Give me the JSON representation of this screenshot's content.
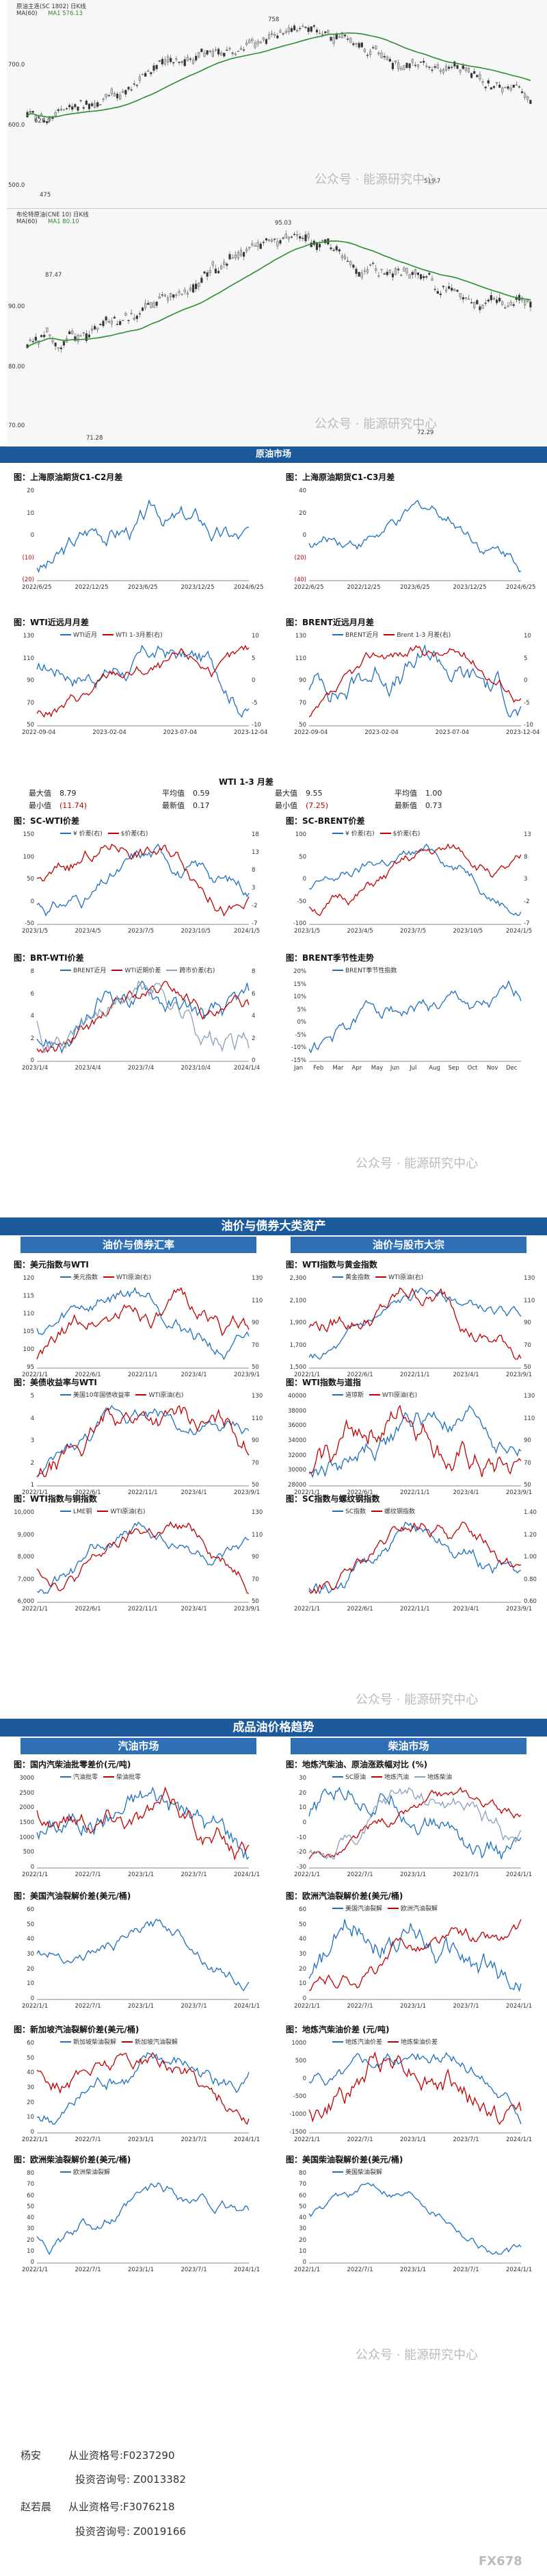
{
  "watermark": "公众号 · 能源研究中心",
  "corner_mark": "FX678",
  "top_charts": {
    "k1": {
      "head": "原油主连(SC 1802)    日K线",
      "ma": "MA(60)",
      "ma_val": "MA1 576.13",
      "price_high": "758",
      "price_mark1": "628.9",
      "price_mark2": "519.7",
      "price_low": "475",
      "y_ticks": [
        "700.0",
        "600.0",
        "500.0"
      ],
      "x_ticks": [
        "2022/7/5",
        "2022/11/3",
        "2023/3/10",
        "2023/7/11",
        "2023/11/9",
        "2024/3/8",
        "2024/6/28"
      ]
    },
    "k2": {
      "head": "布伦特原油(CNE 10)    日K线",
      "ma": "MA(60)",
      "ma_val": "MA1 80.10",
      "price_high": "95.03",
      "price_mark1": "87.47",
      "price_low": "72.29",
      "price_mark2": "71.28",
      "y_ticks": [
        "90.00",
        "80.00",
        "70.00"
      ],
      "x_ticks": [
        "2022/9/29",
        "2023/1/20",
        "2023/5/5",
        "2023/8/24",
        "2023/12/11",
        "2024/4/3"
      ]
    }
  },
  "bands": {
    "crude": "原油市场",
    "cross": "油价与债券大类资产",
    "refined": "成品油价格趋势"
  },
  "subbands": {
    "bond": "油价与债券汇率",
    "equity": "油价与股市大宗",
    "gasoline": "汽油市场",
    "diesel": "柴油市场"
  },
  "stats": {
    "title": "WTI 1-3 月差",
    "rows": [
      [
        "最大值",
        "8.79",
        "平均值",
        "0.59",
        "最大值",
        "9.55",
        "平均值",
        "1.00"
      ],
      [
        "最小值",
        "(11.74)",
        "最新值",
        "0.17",
        "最小值",
        "(7.25)",
        "最新值",
        "0.73"
      ]
    ]
  },
  "charts": [
    {
      "id": "c1",
      "title": "图：上海原油期货C1-C2月差",
      "legend": [],
      "y_left": [
        "20",
        "10",
        "0",
        "(10)",
        "(20)"
      ],
      "x": [
        "2022/6/25",
        "2022/12/25",
        "2023/6/25",
        "2023/12/25",
        "2024/6/25"
      ]
    },
    {
      "id": "c2",
      "title": "图：上海原油期货C1-C3月差",
      "legend": [],
      "y_left": [
        "40",
        "20",
        "0",
        "(20)",
        "(40)"
      ],
      "x": [
        "2022/6/25",
        "2022/12/25",
        "2023/6/25",
        "2023/12/25",
        "2024/6/25"
      ]
    },
    {
      "id": "c3",
      "title": "图：WTI近远月月差",
      "legend": [
        "WTI近月",
        "WTI 1-3月差(右)"
      ],
      "y_left": [
        "130",
        "110",
        "90",
        "70",
        "50"
      ],
      "y_right": [
        "10",
        "5",
        "0",
        "-5",
        "-10"
      ],
      "x": [
        "2022-09-04",
        "2023-02-04",
        "2023-07-04",
        "2023-12-04"
      ]
    },
    {
      "id": "c4",
      "title": "图：BRENT近远月月差",
      "legend": [
        "BRENT近月",
        "Brent 1-3 月差(右)"
      ],
      "y_left": [
        "130",
        "110",
        "90",
        "70",
        "50"
      ],
      "y_right": [
        "10",
        "5",
        "0",
        "-5",
        "-10"
      ],
      "x": [
        "2022-09-04",
        "2023-02-04",
        "2023-07-04",
        "2023-12-04"
      ]
    },
    {
      "id": "c5",
      "title": "图：SC-WTI价差",
      "legend": [
        "¥ 价差(右)",
        "$价差(右)"
      ],
      "y_left": [
        "150",
        "100",
        "50",
        "0",
        "-50"
      ],
      "y_right": [
        "18",
        "13",
        "8",
        "3",
        "-2",
        "-7"
      ],
      "x": [
        "2023/1/5",
        "2023/4/5",
        "2023/7/5",
        "2023/10/5",
        "2024/1/5"
      ]
    },
    {
      "id": "c6",
      "title": "图：SC-BRENT价差",
      "legend": [
        "¥ 价差(右)",
        "$价差(右)"
      ],
      "y_left": [
        "100",
        "50",
        "0",
        "-50",
        "-100"
      ],
      "y_right": [
        "13",
        "8",
        "3",
        "-2",
        "-7"
      ],
      "x": [
        "2023/1/5",
        "2023/4/5",
        "2023/7/5",
        "2023/10/5",
        "2024/1/5"
      ]
    },
    {
      "id": "c7",
      "title": "图：BRT-WTI价差",
      "legend": [
        "BRENT近月",
        "WTI近期价差",
        "跨市价差(右)"
      ],
      "y_left": [
        "8",
        "6",
        "4",
        "2",
        "0"
      ],
      "y_right": [
        "8",
        "6",
        "4",
        "2",
        "0"
      ],
      "x": [
        "2023/1/4",
        "2023/4/4",
        "2023/7/4",
        "2023/10/4",
        "2024/1/4"
      ]
    },
    {
      "id": "c8",
      "title": "图：BRENT季节性走势",
      "legend": [
        "BRENT季节性指数"
      ],
      "y_left": [
        "20%",
        "15%",
        "10%",
        "5%",
        "0%",
        "-5%",
        "-10%",
        "-15%"
      ],
      "x": [
        "Jan",
        "Feb",
        "Mar",
        "Apr",
        "May",
        "Jun",
        "Jul",
        "Aug",
        "Sep",
        "Oct",
        "Nov",
        "Dec"
      ]
    },
    {
      "id": "c9",
      "title": "图：美元指数与WTI",
      "legend": [
        "美元指数",
        "WTI原油(右)"
      ],
      "y_left": [
        "120",
        "115",
        "110",
        "105",
        "100",
        "95"
      ],
      "y_right": [
        "130",
        "110",
        "90",
        "70",
        "50"
      ],
      "x": [
        "2022/1/1",
        "2022/6/1",
        "2022/11/1",
        "2023/4/1",
        "2023/9/1"
      ]
    },
    {
      "id": "c10",
      "title": "图：WTI指数与黄金指数",
      "legend": [
        "黄金指数",
        "WTI原油(右)"
      ],
      "y_left": [
        "2,300",
        "2,100",
        "1,900",
        "1,700",
        "1,500"
      ],
      "y_right": [
        "130",
        "110",
        "90",
        "70",
        "50"
      ],
      "x": [
        "2022/1/1",
        "2022/6/1",
        "2022/11/1",
        "2023/4/1",
        "2023/9/1"
      ]
    },
    {
      "id": "c11",
      "title": "图：美债收益率与WTI",
      "legend": [
        "美国10年国债收益率",
        "WTI原油(右)"
      ],
      "y_left": [
        "5",
        "4",
        "3",
        "2",
        "1"
      ],
      "y_right": [
        "130",
        "110",
        "90",
        "70",
        "50"
      ],
      "x": [
        "2022/1/1",
        "2022/6/1",
        "2022/11/1",
        "2023/4/1",
        "2023/9/1"
      ]
    },
    {
      "id": "c12",
      "title": "图：WTI指数与道指",
      "legend": [
        "道琼斯",
        "WTI原油(右)"
      ],
      "y_left": [
        "40000",
        "38000",
        "36000",
        "34000",
        "32000",
        "30000",
        "28000"
      ],
      "y_right": [
        "130",
        "110",
        "90",
        "70",
        "50"
      ],
      "x": [
        "2022/1/1",
        "2022/6/1",
        "2022/11/1",
        "2023/4/1",
        "2023/9/1"
      ]
    },
    {
      "id": "c13",
      "title": "图：WTI指数与铜指数",
      "legend": [
        "LME铜",
        "WTI原油(右)"
      ],
      "y_left": [
        "10,000",
        "9,000",
        "8,000",
        "7,000",
        "6,000"
      ],
      "y_right": [
        "130",
        "110",
        "90",
        "70",
        "50"
      ],
      "x": [
        "2022/1/1",
        "2022/6/1",
        "2022/11/1",
        "2023/4/1",
        "2023/9/1"
      ]
    },
    {
      "id": "c14",
      "title": "图：SC指数与螺纹钢指数",
      "legend": [
        "SC指数",
        "螺纹钢指数"
      ],
      "y_left": [
        "",
        "",
        "",
        "",
        ""
      ],
      "y_right": [
        "1.40",
        "1.20",
        "1.00",
        "0.80",
        "0.60"
      ],
      "x": [
        "2022/1/1",
        "2022/6/1",
        "2022/11/1",
        "2023/4/1",
        "2023/9/1"
      ]
    },
    {
      "id": "c15",
      "title": "图：国内汽柴油批零差价(元/吨)",
      "legend": [
        "汽油批零",
        "柴油批零"
      ],
      "y_left": [
        "3000",
        "2500",
        "2000",
        "1500",
        "1000",
        "500",
        "0"
      ],
      "x": [
        "2022/1/1",
        "2022/7/1",
        "2023/1/1",
        "2023/7/1",
        "2024/1/1"
      ]
    },
    {
      "id": "c16",
      "title": "图：地炼汽柴油、原油涨跌幅对比 (%)",
      "legend": [
        "SC原油",
        "地炼汽油",
        "地炼柴油"
      ],
      "y_left": [
        "30",
        "20",
        "10",
        "0",
        "-10",
        "-20",
        "-30"
      ],
      "x": [
        "2022/1/1",
        "2022/7/1",
        "2023/1/1",
        "2023/7/1",
        "2024/1/1"
      ]
    },
    {
      "id": "c17",
      "title": "图：美国汽油裂解价差(美元/桶)",
      "legend": [],
      "y_left": [
        "60",
        "50",
        "40",
        "30",
        "20",
        "10",
        "0"
      ],
      "x": [
        "2022/1/1",
        "2022/7/1",
        "2023/1/1",
        "2023/7/1",
        "2024/1/1"
      ]
    },
    {
      "id": "c18",
      "title": "图：欧洲汽油裂解价差(美元/桶)",
      "legend": [
        "美国汽油裂解",
        "欧洲汽油裂解"
      ],
      "y_left": [
        "60",
        "50",
        "40",
        "30",
        "20",
        "10",
        "0"
      ],
      "x": [
        "2022/1/1",
        "2022/7/1",
        "2023/1/1",
        "2023/7/1",
        "2024/1/1"
      ]
    },
    {
      "id": "c19",
      "title": "图：新加坡汽油裂解价差(美元/桶)",
      "legend": [
        "新加坡柴油裂解",
        "新加坡汽油裂解"
      ],
      "y_left": [
        "60",
        "50",
        "40",
        "30",
        "20",
        "10",
        "0"
      ],
      "x": [
        "2022/1/1",
        "2022/7/1",
        "2023/1/1",
        "2023/7/1",
        "2024/1/1"
      ]
    },
    {
      "id": "c20",
      "title": "图：地炼汽柴油价差 (元/吨)",
      "legend": [
        "地炼汽油价差",
        "地炼柴油价差"
      ],
      "y_left": [
        "1000",
        "500",
        "0",
        "-500",
        "-1000",
        "-1500"
      ],
      "x": [
        "2022/1/1",
        "2022/7/1",
        "2023/1/1",
        "2023/7/1",
        "2024/1/1"
      ]
    },
    {
      "id": "c21",
      "title": "图：欧洲柴油裂解价差(美元/桶)",
      "legend": [
        "欧洲柴油裂解"
      ],
      "y_left": [
        "80",
        "70",
        "60",
        "50",
        "40",
        "30",
        "20",
        "10",
        "0"
      ],
      "x": [
        "2022/1/1",
        "2022/7/1",
        "2023/1/1",
        "2023/7/1",
        "2024/1/1"
      ]
    },
    {
      "id": "c22",
      "title": "图：美国柴油裂解价差(美元/桶)",
      "legend": [
        "美国柴油裂解"
      ],
      "y_left": [
        "80",
        "70",
        "60",
        "50",
        "40",
        "30",
        "20",
        "10",
        "0"
      ],
      "x": [
        "2022/1/1",
        "2022/7/1",
        "2023/1/1",
        "2023/7/1",
        "2024/1/1"
      ]
    }
  ],
  "footer": {
    "name1": "杨安",
    "cert1": "从业资格号:F0237290",
    "invest1": "投资咨询号: Z0013382",
    "name2": "赵若晨",
    "cert2": "从业资格号:F3076218",
    "invest2": "投资咨询号: Z0019166"
  },
  "colors": {
    "blue": "#1f6fbf",
    "red": "#c00000",
    "green": "#2e8b2e",
    "band": "#1d5a9c",
    "gray": "#8aa0b8"
  }
}
